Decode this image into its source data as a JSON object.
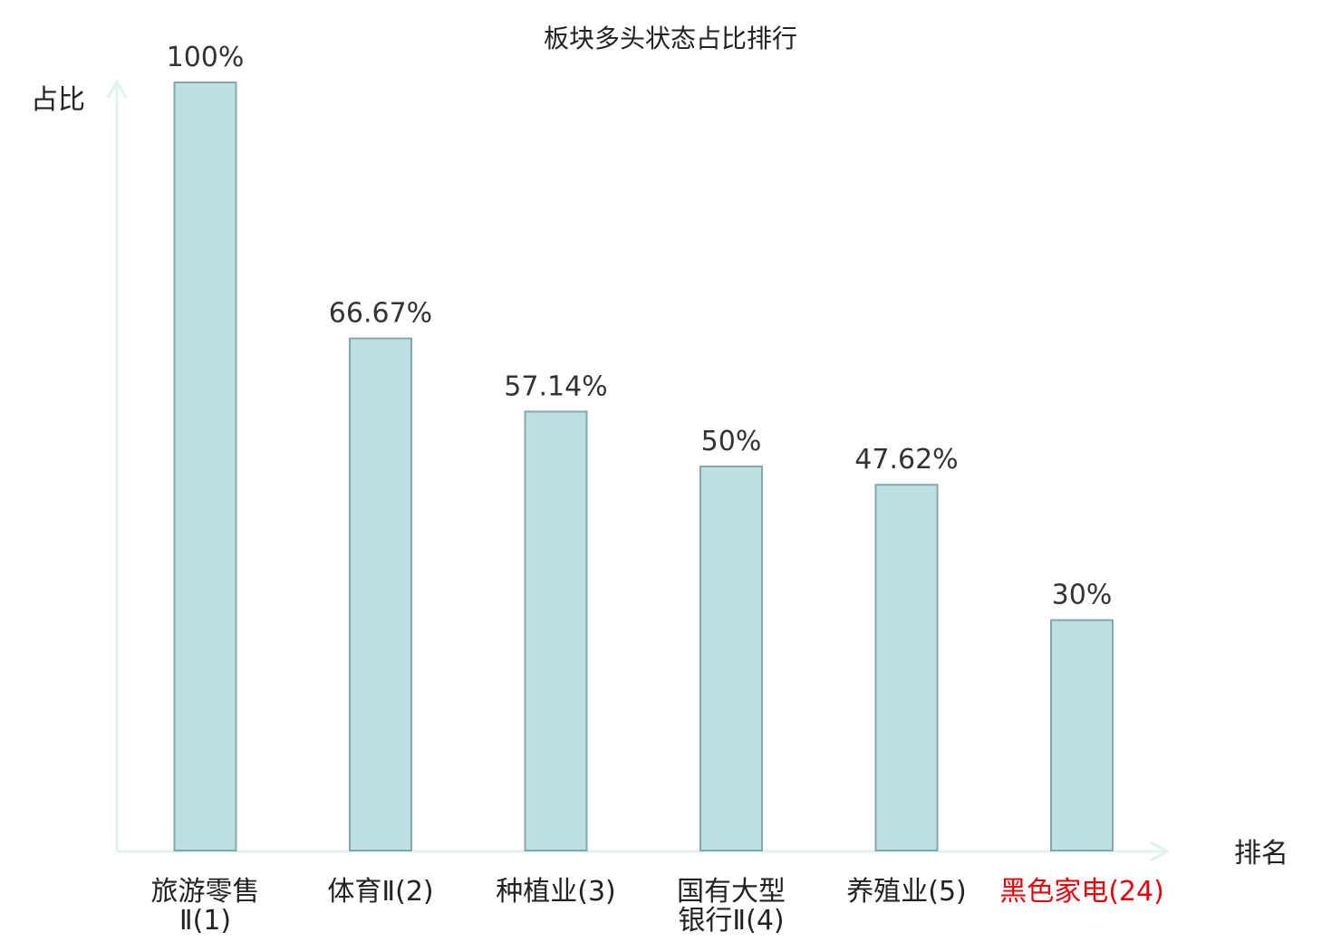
{
  "chart_data": {
    "type": "bar",
    "title": "板块多头状态占比排行",
    "ylabel": "占比",
    "xlabel": "排名",
    "ylim": [
      0,
      100
    ],
    "grid": false,
    "categories": [
      {
        "lines": [
          "旅游零售",
          "Ⅱ(1)"
        ],
        "highlight": false
      },
      {
        "lines": [
          "体育Ⅱ(2)"
        ],
        "highlight": false
      },
      {
        "lines": [
          "种植业(3)"
        ],
        "highlight": false
      },
      {
        "lines": [
          "国有大型",
          "银行Ⅱ(4)"
        ],
        "highlight": false
      },
      {
        "lines": [
          "养殖业(5)"
        ],
        "highlight": false
      },
      {
        "lines": [
          "黑色家电(24)"
        ],
        "highlight": true
      }
    ],
    "values": [
      100,
      66.67,
      57.14,
      50,
      47.62,
      30
    ],
    "value_labels": [
      "100%",
      "66.67%",
      "57.14%",
      "50%",
      "47.62%",
      "30%"
    ],
    "colors": {
      "bar_fill": "#bde0e3",
      "bar_stroke": "#86a7aa",
      "axis": "#dff2ef",
      "highlight_text": "#e8000b"
    }
  }
}
